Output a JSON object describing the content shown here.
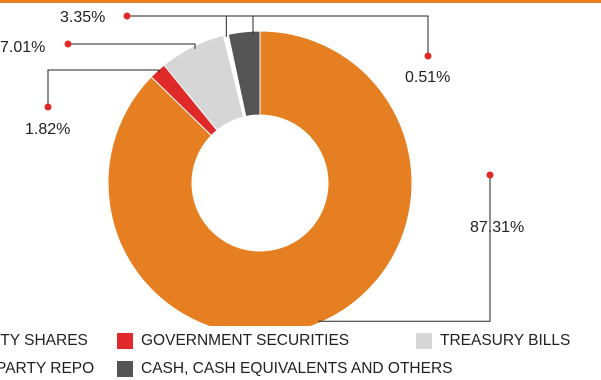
{
  "chart_data": {
    "type": "pie",
    "variant": "donut",
    "categories": [
      "EQUITY SHARES",
      "GOVERNMENT SECURITIES",
      "TREASURY BILLS",
      "TRI-PARTY REPO",
      "CASH, CASH EQUIVALENTS AND OTHERS"
    ],
    "values": [
      87.31,
      1.82,
      7.01,
      0.51,
      3.35
    ],
    "labels": [
      "87.31%",
      "1.82%",
      "7.01%",
      "0.51%",
      "3.35%"
    ],
    "colors": [
      "#E67E22",
      "#E02A2A",
      "#D6D6D6",
      "#FFFFFF",
      "#555555"
    ],
    "legend": [
      {
        "label": "ITY SHARES",
        "color": "#E67E22"
      },
      {
        "label": "GOVERNMENT SECURITIES",
        "color": "#E02A2A"
      },
      {
        "label": "TREASURY BILLS",
        "color": "#D6D6D6"
      },
      {
        "label": "PARTY REPO",
        "color": "#FFFFFF"
      },
      {
        "label": "CASH, CASH EQUIVALENTS AND OTHERS",
        "color": "#555555"
      }
    ],
    "leader_color": "#222222",
    "dot_color": "#E02A2A"
  }
}
